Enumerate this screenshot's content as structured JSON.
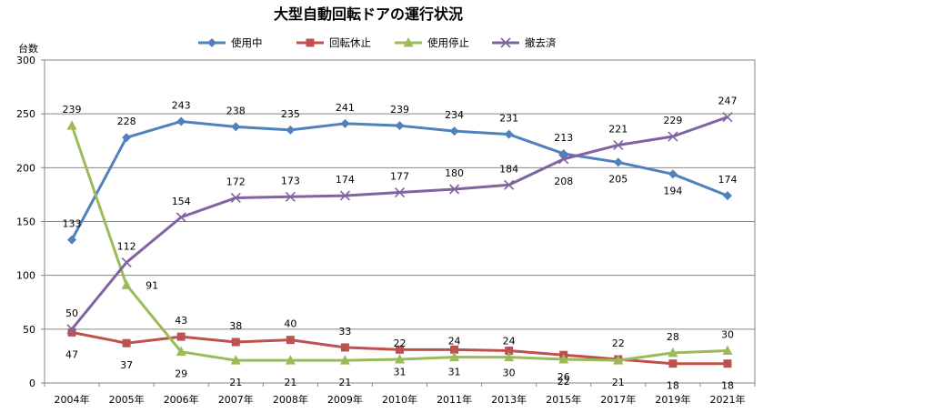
{
  "chart_data": {
    "type": "line",
    "title": "大型自動回転ドアの運行状況",
    "ylabel": "台数",
    "xlabel": "",
    "ylim": [
      0,
      300
    ],
    "yticks": [
      0,
      50,
      100,
      150,
      200,
      250,
      300
    ],
    "grid": true,
    "legend_position": "top",
    "categories": [
      "2004年",
      "2005年",
      "2006年",
      "2007年",
      "2008年",
      "2009年",
      "2010年",
      "2011年",
      "2013年",
      "2015年",
      "2017年",
      "2019年",
      "2021年"
    ],
    "series": [
      {
        "name": "使用中",
        "color": "#4F81BD",
        "marker": "diamond",
        "values": [
          133,
          228,
          243,
          238,
          235,
          241,
          239,
          234,
          231,
          213,
          205,
          194,
          174
        ]
      },
      {
        "name": "回転休止",
        "color": "#C0504D",
        "marker": "square",
        "values": [
          47,
          37,
          43,
          38,
          40,
          33,
          31,
          31,
          30,
          26,
          22,
          18,
          18
        ]
      },
      {
        "name": "使用停止",
        "color": "#9BBB59",
        "marker": "triangle",
        "values": [
          239,
          91,
          29,
          21,
          21,
          21,
          22,
          24,
          24,
          22,
          21,
          28,
          30
        ]
      },
      {
        "name": "撤去済",
        "color": "#8064A2",
        "marker": "x",
        "values": [
          50,
          112,
          154,
          172,
          173,
          174,
          177,
          180,
          184,
          208,
          221,
          229,
          247
        ]
      }
    ]
  }
}
